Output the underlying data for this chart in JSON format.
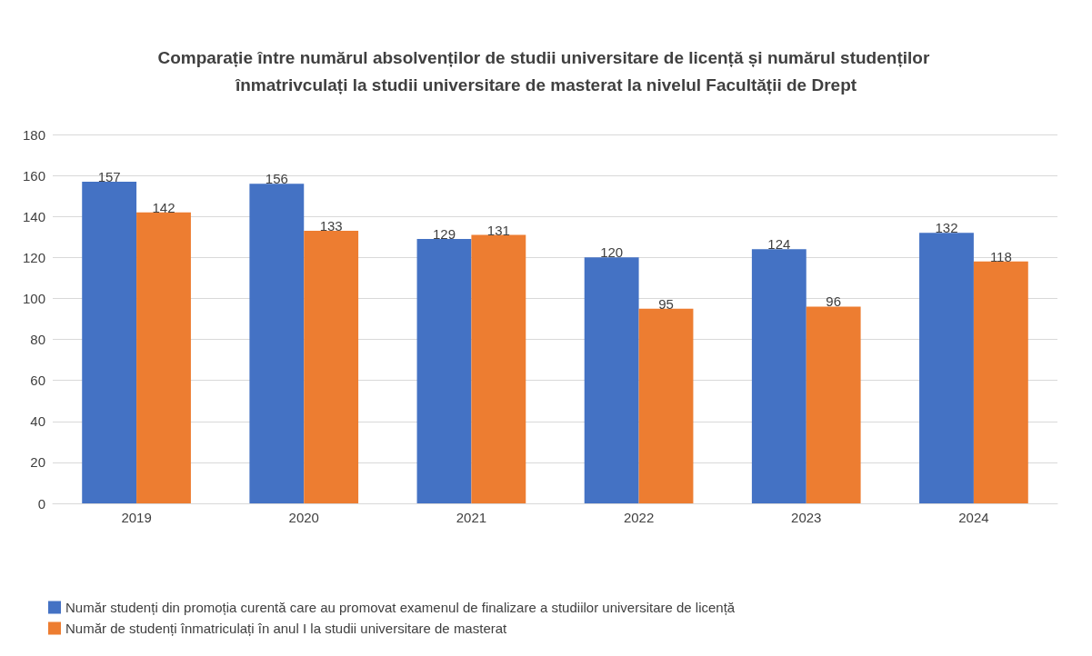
{
  "chart_data": {
    "type": "bar",
    "title": "Comparație între numărul absolvenților de studii universitare de licență și numărul studenților înmatrivculați la studii universitare de masterat la nivelul Facultății de Drept",
    "categories": [
      "2019",
      "2020",
      "2021",
      "2022",
      "2023",
      "2024"
    ],
    "series": [
      {
        "name": "Număr studenți din promoția curentă care au promovat examenul de finalizare a studiilor universitare de licență",
        "color": "#4472c4",
        "values": [
          157,
          156,
          129,
          120,
          124,
          132
        ]
      },
      {
        "name": "Număr de studenți înmatriculați în anul I la studii universitare de masterat",
        "color": "#ed7d31",
        "values": [
          142,
          133,
          131,
          95,
          96,
          118
        ]
      }
    ],
    "ylim": [
      0,
      180
    ],
    "yticks": [
      0,
      20,
      40,
      60,
      80,
      100,
      120,
      140,
      160,
      180
    ],
    "grid": "y",
    "legend": "bottom",
    "data_labels": true
  }
}
